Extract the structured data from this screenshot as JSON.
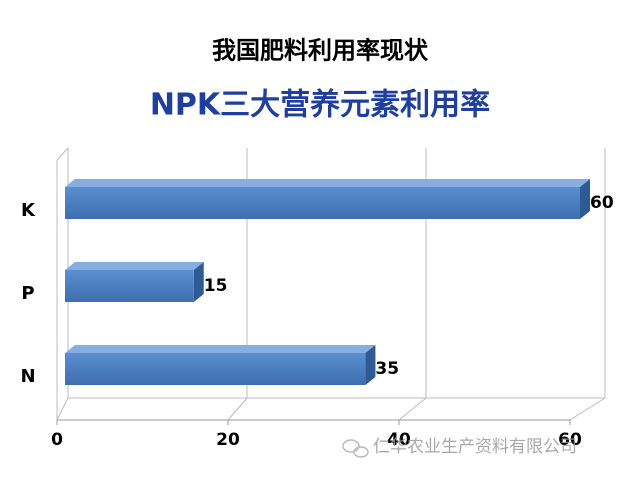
{
  "chart_data": {
    "type": "bar",
    "orientation": "horizontal",
    "title": "我国肥料利用率现状",
    "subtitle": "NPK三大营养元素利用率",
    "categories": [
      "K",
      "P",
      "N"
    ],
    "values": [
      60,
      15,
      35
    ],
    "color": "#4f81bd",
    "xlim": [
      0,
      60
    ],
    "xticks": [
      0,
      20,
      40,
      60
    ],
    "grid": true,
    "watermark": "仁华农业生产资料有限公司"
  }
}
